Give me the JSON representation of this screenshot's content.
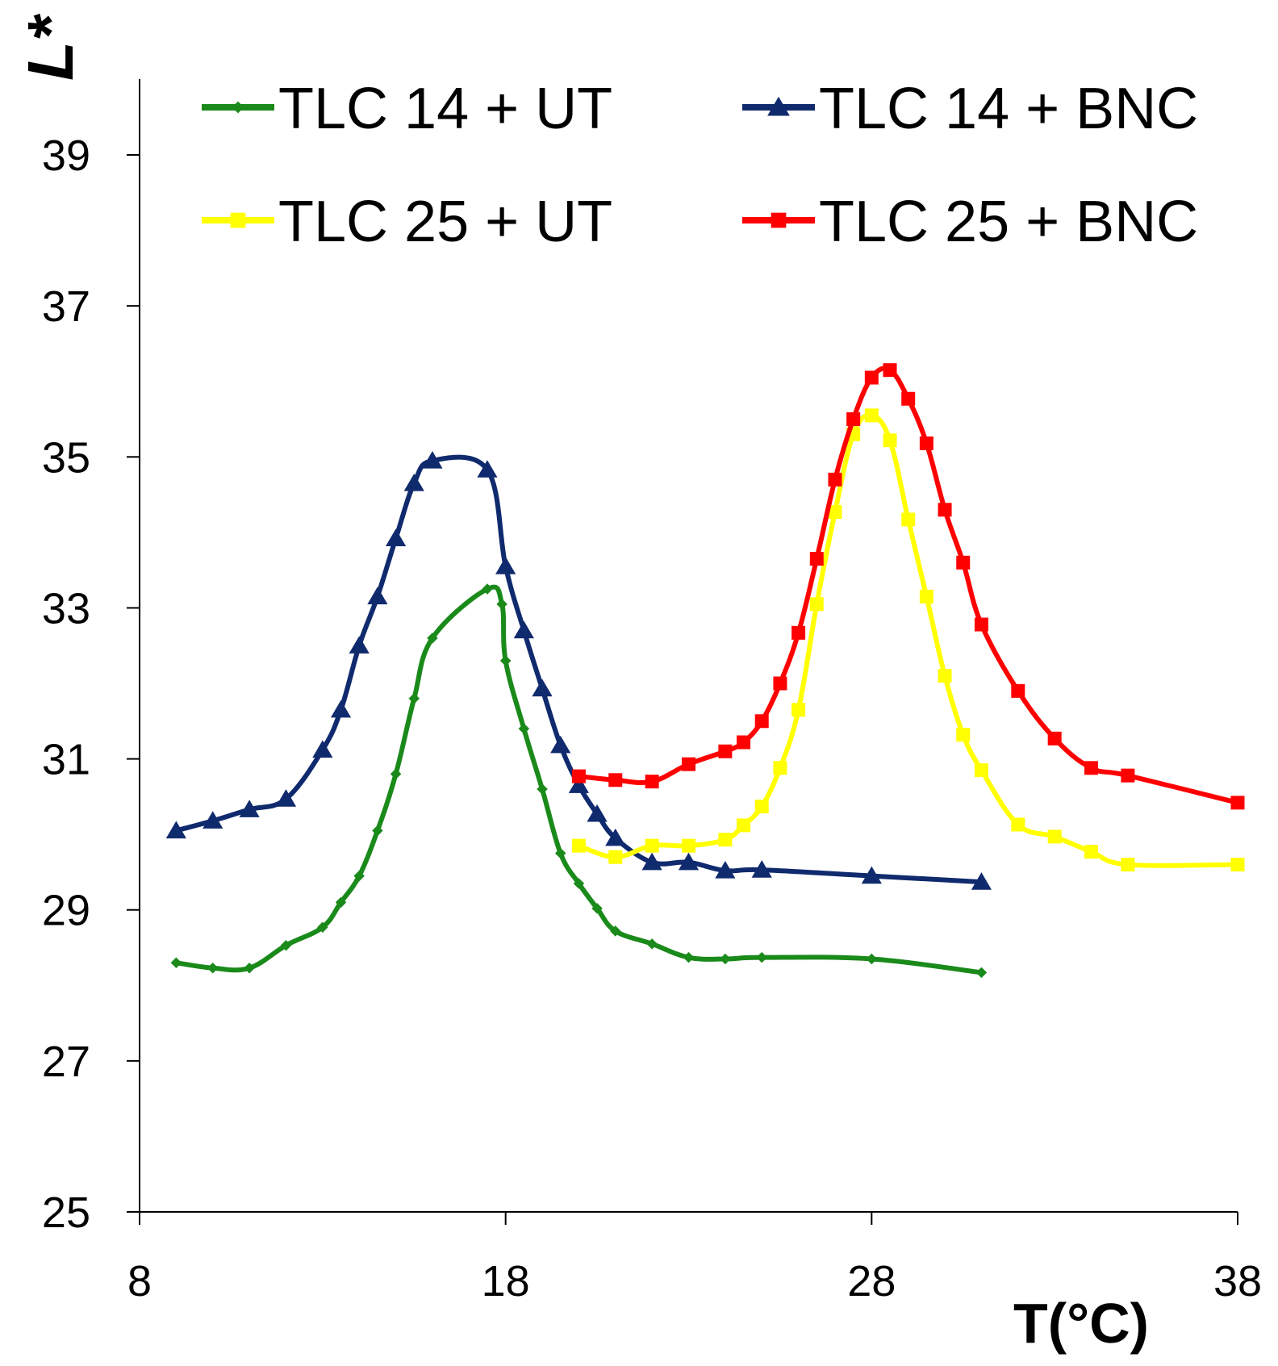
{
  "chart_data": {
    "type": "line",
    "title": "",
    "xlabel": "T(°C)",
    "ylabel": "L*",
    "xlim": [
      8,
      38
    ],
    "ylim": [
      25,
      40
    ],
    "xticks": [
      8,
      18,
      28,
      38
    ],
    "yticks": [
      25,
      27,
      29,
      31,
      33,
      35,
      37,
      39
    ],
    "legend_position": "top",
    "series": [
      {
        "name": "TLC 14 + UT",
        "color": "#1a8a1a",
        "marker": "diamond",
        "x": [
          9,
          10,
          11,
          12,
          13,
          13.5,
          14,
          14.5,
          15,
          15.5,
          16,
          17.5,
          17.9,
          18,
          18.5,
          19,
          19.5,
          20,
          20.5,
          21,
          22,
          23,
          24,
          25,
          28,
          31
        ],
        "y": [
          28.3,
          28.23,
          28.23,
          28.53,
          28.77,
          29.1,
          29.45,
          30.05,
          30.8,
          31.8,
          32.6,
          33.25,
          33.05,
          32.3,
          31.4,
          30.6,
          29.75,
          29.35,
          29.02,
          28.72,
          28.55,
          28.37,
          28.35,
          28.37,
          28.35,
          28.17
        ]
      },
      {
        "name": "TLC 14 + BNC",
        "color": "#102a6e",
        "marker": "triangle",
        "x": [
          9,
          10,
          11,
          12,
          13,
          13.5,
          14,
          14.5,
          15,
          15.5,
          16,
          17.5,
          18,
          18.5,
          19,
          19.5,
          20,
          20.5,
          21,
          22,
          23,
          24,
          25,
          28,
          31
        ],
        "y": [
          30.05,
          30.18,
          30.33,
          30.47,
          31.12,
          31.65,
          32.5,
          33.15,
          33.92,
          34.65,
          34.95,
          34.83,
          33.55,
          32.7,
          31.93,
          31.18,
          30.65,
          30.27,
          29.95,
          29.63,
          29.63,
          29.52,
          29.53,
          29.45,
          29.37
        ]
      },
      {
        "name": "TLC 25 + UT",
        "color": "#ffff00",
        "marker": "square",
        "x": [
          20,
          21,
          22,
          23,
          24,
          24.5,
          25,
          25.5,
          26,
          26.5,
          27,
          27.5,
          28,
          28.5,
          29,
          29.5,
          30,
          30.5,
          31,
          32,
          33,
          34,
          35,
          38
        ],
        "y": [
          29.85,
          29.7,
          29.85,
          29.85,
          29.93,
          30.12,
          30.37,
          30.88,
          31.65,
          33.05,
          34.27,
          35.3,
          35.55,
          35.22,
          34.17,
          33.15,
          32.1,
          31.32,
          30.85,
          30.13,
          29.97,
          29.77,
          29.6,
          29.6
        ]
      },
      {
        "name": "TLC 25 + BNC",
        "color": "#ff0000",
        "marker": "square",
        "x": [
          20,
          21,
          22,
          23,
          24,
          24.5,
          25,
          25.5,
          26,
          26.5,
          27,
          27.5,
          28,
          28.5,
          29,
          29.5,
          30,
          30.5,
          31,
          32,
          33,
          34,
          35,
          38
        ],
        "y": [
          30.77,
          30.72,
          30.7,
          30.93,
          31.1,
          31.22,
          31.5,
          32.0,
          32.67,
          33.65,
          34.7,
          35.5,
          36.05,
          36.15,
          35.77,
          35.18,
          34.3,
          33.6,
          32.78,
          31.9,
          31.27,
          30.88,
          30.78,
          30.42
        ]
      }
    ]
  }
}
